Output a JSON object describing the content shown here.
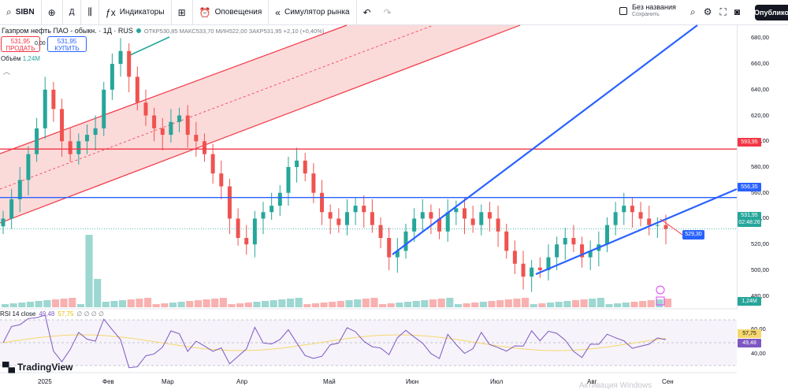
{
  "toolbar": {
    "symbol": "SIBN",
    "interval": "Д",
    "indicators": "Индикаторы",
    "alerts": "Оповещения",
    "replay": "Симулятор рынка",
    "layout_name": "Без названия",
    "layout_status": "Сохранить",
    "publish": "Опублико"
  },
  "legend": {
    "title": "Газпром нефть ПАО - обыкн. · 1Д · RUS",
    "ohlc": "ОТКР530,85 МАКС533,70 МИН522,00 ЗАКР531,95 +2,10 (+0,40%)"
  },
  "trade": {
    "sell_price": "531,95",
    "sell_label": "ПРОДАТЬ",
    "spread": "0,00",
    "buy_price": "531,95",
    "buy_label": "КУПИТЬ"
  },
  "volume": {
    "label": "Объём",
    "value": "1,24M",
    "axis_tag": "1,24M"
  },
  "price_axis": {
    "ticks": [
      "680,00",
      "660,00",
      "640,00",
      "620,00",
      "600,00",
      "580,00",
      "560,00",
      "540,00",
      "520,00",
      "500,00",
      "480,00"
    ],
    "tags": {
      "resistance": "593,95",
      "support": "556,35",
      "last": "531,95",
      "countdown": "02:48:26",
      "target": "529,30"
    }
  },
  "rsi": {
    "label": "RSI 14 close",
    "value": "49,48",
    "ma_value": "57,75",
    "na": "∅ ∅ ∅ ∅",
    "axis_ticks": [
      "60,00",
      "40,00"
    ],
    "tag_ma": "57,75",
    "tag_value": "49,48"
  },
  "branding": {
    "logo": "TradingView",
    "watermark": "Активация Windows"
  },
  "time_axis": [
    "2025",
    "Фев",
    "Мар",
    "Апр",
    "Май",
    "Июн",
    "Июл",
    "Авг",
    "Сен"
  ],
  "colors": {
    "up": "#26a69a",
    "down": "#ef5350",
    "blue_line": "#2962ff",
    "red_line": "#f23645",
    "channel_fill": "#f8bcbc",
    "rsi": "#7e57c2",
    "rsi_ma": "#f5d76e"
  },
  "chart_data": {
    "type": "candlestick",
    "symbol": "SIBN",
    "timeframe": "1D",
    "ylim": [
      470,
      690
    ],
    "months": [
      "2025",
      "Фев",
      "Мар",
      "Апр",
      "Май",
      "Июн",
      "Июл",
      "Авг",
      "Сен"
    ],
    "close_approx": [
      540,
      555,
      570,
      590,
      610,
      640,
      625,
      600,
      590,
      600,
      605,
      610,
      640,
      660,
      670,
      650,
      630,
      620,
      610,
      605,
      615,
      620,
      605,
      600,
      590,
      575,
      565,
      540,
      525,
      520,
      540,
      545,
      550,
      560,
      580,
      585,
      575,
      560,
      545,
      540,
      535,
      545,
      550,
      545,
      535,
      525,
      510,
      515,
      530,
      540,
      545,
      540,
      530,
      545,
      548,
      540,
      535,
      545,
      540,
      530,
      515,
      505,
      495,
      502,
      500,
      510,
      520,
      525,
      520,
      510,
      515,
      520,
      535,
      545,
      550,
      545,
      540,
      535,
      535,
      532
    ],
    "horizontal_lines": [
      593.95,
      556.35
    ],
    "last_price": 531.95,
    "target": 529.3,
    "rsi_last": 49.48,
    "rsi_ma_last": 57.75
  }
}
